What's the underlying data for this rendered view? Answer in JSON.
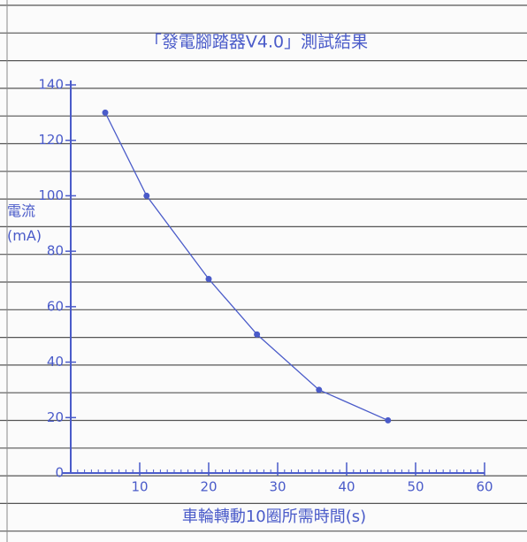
{
  "chart_data": {
    "type": "line",
    "title": "「發電腳踏器V4.0」測試結果",
    "xlabel": "車輪轉動10圈所需時間(s)",
    "ylabel": "電流(mA)",
    "x": [
      5,
      11,
      20,
      27,
      36,
      46
    ],
    "series": [
      {
        "values": [
          130,
          100,
          70,
          50,
          30,
          19
        ],
        "color": "#4a5bc9"
      }
    ],
    "xlim": [
      0,
      60
    ],
    "xticks": [
      10,
      20,
      30,
      40,
      50,
      60
    ],
    "ylim": [
      0,
      140
    ],
    "yticks": [
      0,
      20,
      40,
      60,
      80,
      100,
      120,
      140
    ]
  }
}
